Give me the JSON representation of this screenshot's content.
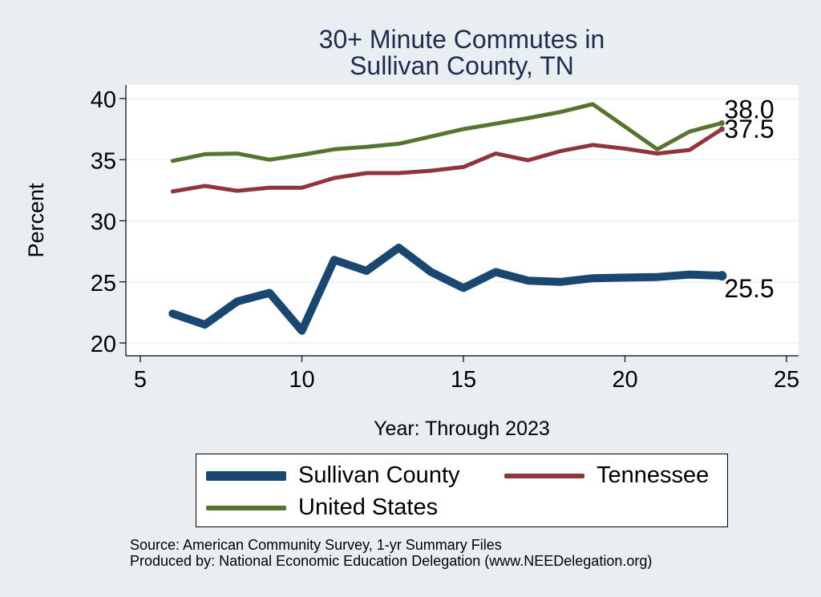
{
  "chart_data": {
    "type": "line",
    "title": [
      "30+ Minute Commutes in",
      "Sullivan County, TN"
    ],
    "xlabel": "Year: Through 2023",
    "ylabel": "Percent",
    "xlim": [
      5,
      25
    ],
    "ylim": [
      20,
      40
    ],
    "x_ticks": [
      5,
      10,
      15,
      20,
      25
    ],
    "y_ticks": [
      20,
      25,
      30,
      35,
      40
    ],
    "grid": "horizontal",
    "legend_placement": "bottom",
    "series": [
      {
        "name": "Sullivan County",
        "color": "#1a476f",
        "points": [
          [
            6,
            22.4
          ],
          [
            7,
            21.5
          ],
          [
            8,
            23.4
          ],
          [
            9,
            24.1
          ],
          [
            10,
            21.0
          ],
          [
            11,
            26.8
          ],
          [
            12,
            25.9
          ],
          [
            13,
            27.8
          ],
          [
            14,
            25.8
          ],
          [
            15,
            24.5
          ],
          [
            16,
            25.8
          ],
          [
            17,
            25.1
          ],
          [
            18,
            25.0
          ],
          [
            19,
            25.3
          ],
          [
            20,
            25.35
          ],
          [
            21,
            25.4
          ],
          [
            22,
            25.6
          ],
          [
            23,
            25.5
          ]
        ],
        "end_label": "25.5"
      },
      {
        "name": "Tennessee",
        "color": "#90353b",
        "points": [
          [
            6,
            32.4
          ],
          [
            7,
            32.85
          ],
          [
            8,
            32.45
          ],
          [
            9,
            32.7
          ],
          [
            10,
            32.7
          ],
          [
            11,
            33.5
          ],
          [
            12,
            33.9
          ],
          [
            13,
            33.9
          ],
          [
            14,
            34.1
          ],
          [
            15,
            34.4
          ],
          [
            16,
            35.5
          ],
          [
            17,
            34.95
          ],
          [
            18,
            35.7
          ],
          [
            19,
            36.2
          ],
          [
            20,
            35.9
          ],
          [
            21,
            35.5
          ],
          [
            22,
            35.8
          ],
          [
            23,
            37.5
          ]
        ],
        "end_label": "37.5"
      },
      {
        "name": "United States",
        "color": "#55752f",
        "points": [
          [
            6,
            34.9
          ],
          [
            7,
            35.45
          ],
          [
            8,
            35.5
          ],
          [
            9,
            35.0
          ],
          [
            10,
            35.4
          ],
          [
            11,
            35.85
          ],
          [
            12,
            36.05
          ],
          [
            13,
            36.3
          ],
          [
            14,
            36.9
          ],
          [
            15,
            37.5
          ],
          [
            16,
            37.95
          ],
          [
            17,
            38.4
          ],
          [
            18,
            38.9
          ],
          [
            19,
            39.55
          ],
          [
            20,
            37.7
          ],
          [
            21,
            35.85
          ],
          [
            22,
            37.3
          ],
          [
            23,
            38.0
          ]
        ],
        "end_label": "38.0"
      }
    ]
  },
  "source_lines": [
    "Source: American Community Survey, 1-yr Summary Files",
    "Produced by: National Economic Education Delegation (www.NEEDelegation.org)"
  ]
}
